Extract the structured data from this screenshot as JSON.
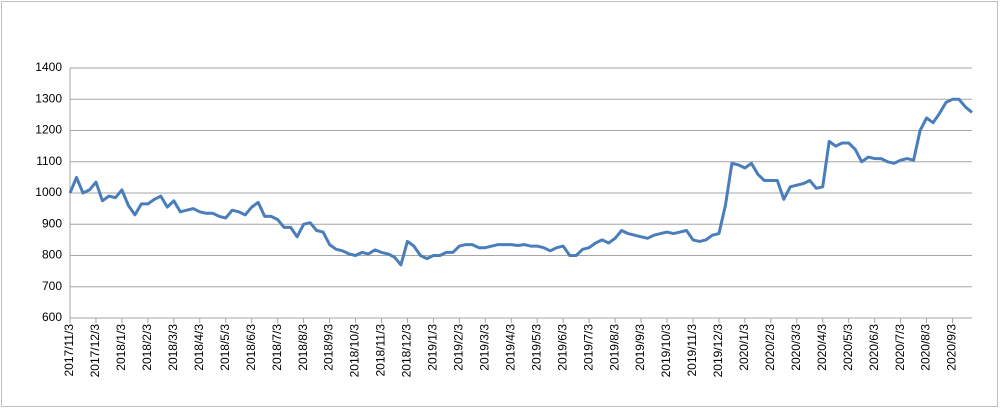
{
  "chart_data": {
    "type": "line",
    "color": "#4a7ebb",
    "grid": true,
    "ylim": [
      600,
      1400
    ],
    "yticks": [
      600,
      700,
      800,
      900,
      1000,
      1100,
      1200,
      1300,
      1400
    ],
    "categories": [
      "2017/11/3",
      null,
      null,
      null,
      "2017/12/3",
      null,
      null,
      null,
      "2018/1/3",
      null,
      null,
      null,
      "2018/2/3",
      null,
      null,
      null,
      "2018/3/3",
      null,
      null,
      null,
      "2018/4/3",
      null,
      null,
      null,
      "2018/5/3",
      null,
      null,
      null,
      "2018/6/3",
      null,
      null,
      null,
      "2018/7/3",
      null,
      null,
      null,
      "2018/8/3",
      null,
      null,
      null,
      "2018/9/3",
      null,
      null,
      null,
      "2018/10/3",
      null,
      null,
      null,
      "2018/11/3",
      null,
      null,
      null,
      "2018/12/3",
      null,
      null,
      null,
      "2019/1/3",
      null,
      null,
      null,
      "2019/2/3",
      null,
      null,
      null,
      "2019/3/3",
      null,
      null,
      null,
      "2019/4/3",
      null,
      null,
      null,
      "2019/5/3",
      null,
      null,
      null,
      "2019/6/3",
      null,
      null,
      null,
      "2019/7/3",
      null,
      null,
      null,
      "2019/8/3",
      null,
      null,
      null,
      "2019/9/3",
      null,
      null,
      null,
      "2019/10/3",
      null,
      null,
      null,
      "2019/11/3",
      null,
      null,
      null,
      "2019/12/3",
      null,
      null,
      null,
      "2020/1/3",
      null,
      null,
      null,
      "2020/2/3",
      null,
      null,
      null,
      "2020/3/3",
      null,
      null,
      null,
      "2020/4/3",
      null,
      null,
      null,
      "2020/5/3",
      null,
      null,
      null,
      "2020/6/3",
      null,
      null,
      null,
      "2020/7/3",
      null,
      null,
      null,
      "2020/8/3",
      null,
      null,
      null,
      "2020/9/3",
      null,
      null,
      null
    ],
    "values": [
      1000,
      1050,
      1000,
      1010,
      1035,
      975,
      990,
      985,
      1010,
      960,
      930,
      965,
      965,
      980,
      990,
      955,
      975,
      940,
      945,
      950,
      940,
      935,
      935,
      925,
      920,
      945,
      940,
      930,
      955,
      970,
      925,
      925,
      915,
      890,
      890,
      860,
      900,
      905,
      880,
      875,
      835,
      820,
      815,
      805,
      800,
      810,
      805,
      818,
      810,
      805,
      795,
      770,
      845,
      830,
      800,
      790,
      800,
      800,
      810,
      810,
      830,
      835,
      835,
      825,
      825,
      830,
      835,
      835,
      835,
      832,
      835,
      830,
      830,
      825,
      815,
      825,
      830,
      800,
      800,
      820,
      825,
      840,
      850,
      840,
      855,
      880,
      870,
      865,
      860,
      855,
      865,
      870,
      875,
      870,
      875,
      880,
      850,
      845,
      850,
      865,
      870,
      960,
      1095,
      1090,
      1080,
      1095,
      1060,
      1040,
      1040,
      1040,
      980,
      1020,
      1025,
      1030,
      1040,
      1015,
      1020,
      1165,
      1150,
      1160,
      1160,
      1140,
      1100,
      1115,
      1110,
      1110,
      1100,
      1095,
      1105,
      1110,
      1105,
      1200,
      1240,
      1225,
      1255,
      1290,
      1300,
      1300,
      1275,
      1258
    ]
  }
}
